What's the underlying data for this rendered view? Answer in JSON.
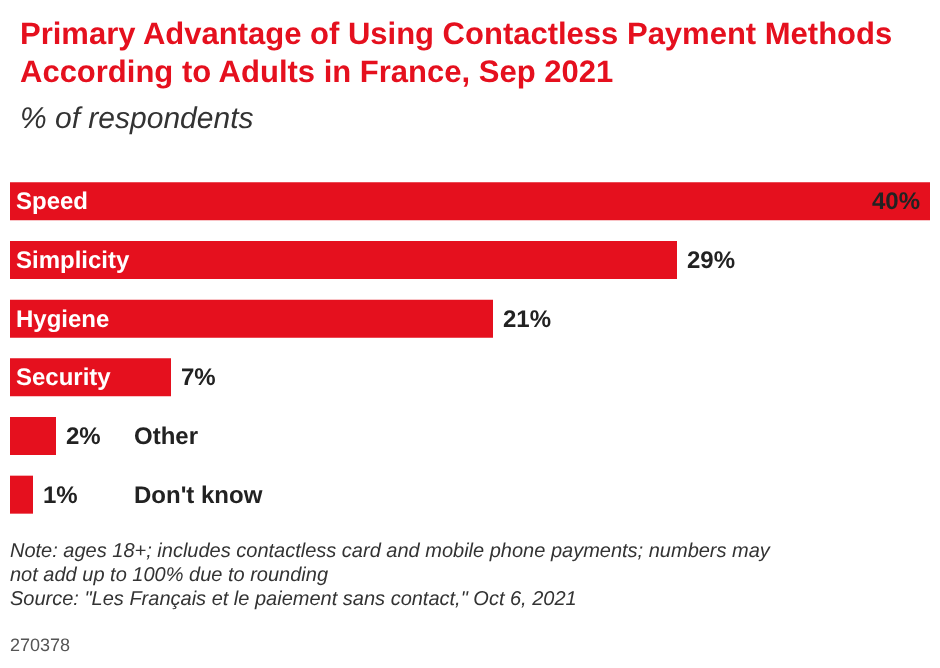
{
  "chart_data": {
    "type": "bar",
    "orientation": "horizontal",
    "title": "Primary Advantage of Using Contactless Payment Methods According to Adults in France, Sep 2021",
    "subtitle": "% of respondents",
    "categories": [
      "Speed",
      "Simplicity",
      "Hygiene",
      "Security",
      "Other",
      "Don't know"
    ],
    "values": [
      40,
      29,
      21,
      7,
      2,
      1
    ],
    "value_labels": [
      "40%",
      "29%",
      "21%",
      "7%",
      "2%",
      "1%"
    ],
    "color": "#e5101e",
    "xlim": [
      0,
      40
    ],
    "tick_labels": "y",
    "grid": false,
    "annotations": [
      "Note: ages 18+; includes contactless card and mobile phone payments; numbers may not add up to 100% due to rounding",
      "Source: \"Les Français et le paiement sans contact,\" Oct 6, 2021",
      "270378"
    ]
  }
}
